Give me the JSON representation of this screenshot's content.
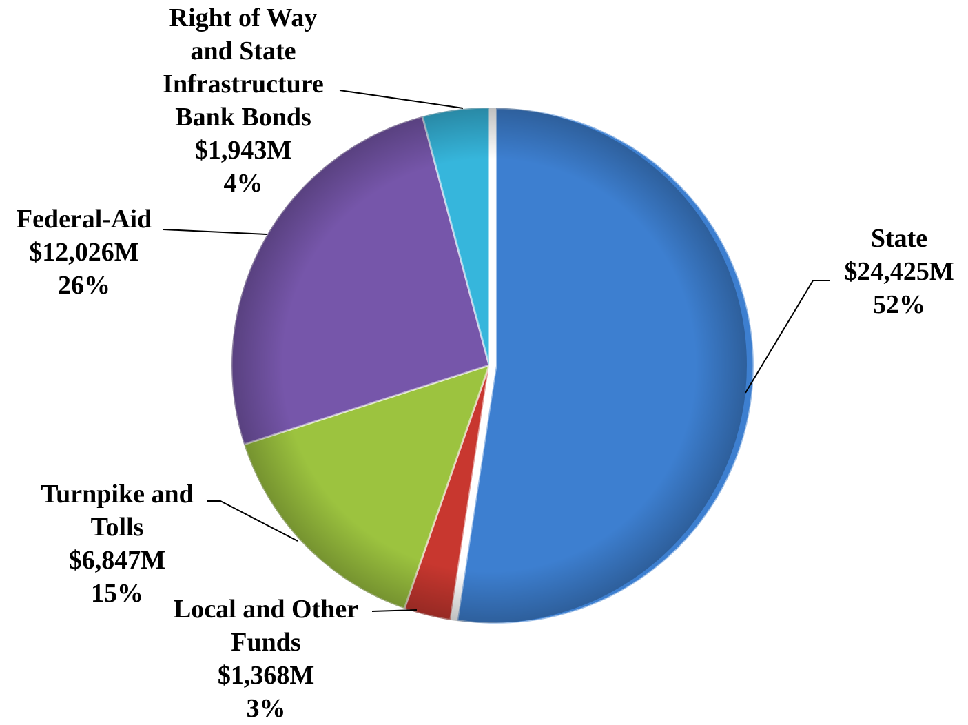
{
  "chart_data": {
    "type": "pie",
    "categories": [
      "State",
      "Local and Other\nFunds",
      "Turnpike and\nTolls",
      "Federal-Aid",
      "Right of Way\nand State\nInfrastructure\nBank Bonds"
    ],
    "values": [
      24425,
      1368,
      6847,
      12026,
      1943
    ],
    "value_labels": [
      "$24,425M",
      "$1,368M",
      "$6,847M",
      "$12,026M",
      "$1,943M"
    ],
    "percent_labels": [
      "52%",
      "3%",
      "15%",
      "26%",
      "4%"
    ],
    "colors": [
      "#3d7fd0",
      "#c8372f",
      "#9cc33f",
      "#7656aa",
      "#36b6dc"
    ]
  }
}
